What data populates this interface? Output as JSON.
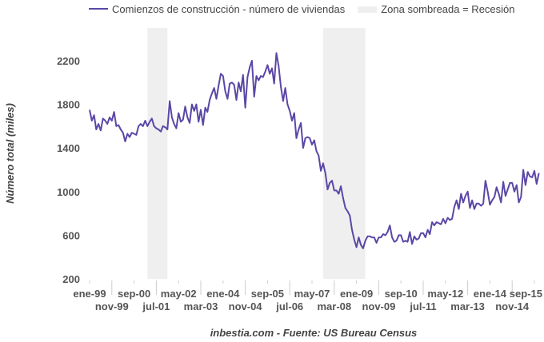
{
  "chart_data": {
    "type": "line",
    "title": "",
    "xlabel": "",
    "ylabel": "Número total (miles)",
    "source": "inbestia.com - Fuente: US Bureau Census",
    "ylim": [
      200,
      2500
    ],
    "yticks": [
      200,
      600,
      1000,
      1400,
      1800,
      2200
    ],
    "x_start": "1999-01",
    "x_frequency": "monthly",
    "xtick_labels": [
      "ene-99",
      "nov-99",
      "sep-00",
      "jul-01",
      "may-02",
      "mar-03",
      "ene-04",
      "nov-04",
      "sep-05",
      "jul-06",
      "may-07",
      "mar-08",
      "ene-09",
      "nov-09",
      "sep-10",
      "jul-11",
      "may-12",
      "mar-13",
      "ene-14",
      "nov-14",
      "sep-15"
    ],
    "xtick_step_months": 10,
    "legend": {
      "placement": "top",
      "series_label": "Comienzos de construcción - número de viviendas",
      "shade_label": "Zona sombreada = Recesión"
    },
    "colors": {
      "line": "#5b47a6",
      "shade": "#efefef"
    },
    "recessions": [
      {
        "start_index": 26,
        "end_index": 35
      },
      {
        "start_index": 105,
        "end_index": 124
      }
    ],
    "series": [
      {
        "name": "Comienzos de construcción - número de viviendas",
        "values": [
          1750,
          1650,
          1700,
          1570,
          1620,
          1560,
          1670,
          1650,
          1620,
          1680,
          1650,
          1730,
          1600,
          1610,
          1570,
          1540,
          1460,
          1530,
          1500,
          1540,
          1530,
          1520,
          1600,
          1620,
          1600,
          1650,
          1600,
          1640,
          1670,
          1600,
          1580,
          1570,
          1550,
          1600,
          1590,
          1570,
          1830,
          1680,
          1620,
          1580,
          1720,
          1640,
          1660,
          1780,
          1680,
          1630,
          1800,
          1740,
          1800,
          1640,
          1750,
          1610,
          1770,
          1730,
          1840,
          1900,
          1950,
          1850,
          1970,
          2080,
          2060,
          1920,
          1850,
          1990,
          2000,
          1980,
          1840,
          2000,
          1920,
          2070,
          1770,
          2050,
          2140,
          2200,
          1870,
          2060,
          2020,
          2060,
          2050,
          2100,
          2160,
          2080,
          2130,
          1990,
          2270,
          2150,
          1960,
          1830,
          1950,
          1800,
          1740,
          1650,
          1720,
          1490,
          1570,
          1630,
          1400,
          1490,
          1500,
          1490,
          1430,
          1470,
          1370,
          1330,
          1190,
          1260,
          1170,
          1020,
          1080,
          1100,
          1010,
          1010,
          980,
          1050,
          940,
          850,
          820,
          780,
          650,
          560,
          490,
          580,
          510,
          480,
          550,
          590,
          590,
          580,
          580,
          530,
          580,
          580,
          610,
          600,
          630,
          690,
          580,
          540,
          550,
          600,
          600,
          540,
          550,
          540,
          630,
          520,
          590,
          560,
          570,
          620,
          620,
          580,
          650,
          610,
          720,
          690,
          720,
          710,
          700,
          750,
          710,
          760,
          740,
          750,
          860,
          920,
          840,
          980,
          900,
          960,
          1000,
          850,
          920,
          840,
          890,
          890,
          870,
          890,
          1100,
          1000,
          880,
          920,
          950,
          1040,
          980,
          900,
          1090,
          960,
          1020,
          1080,
          1080,
          1000,
          1060,
          900,
          950,
          1200,
          1060,
          1180,
          1140,
          1130,
          1190,
          1070,
          1170
        ]
      }
    ]
  }
}
